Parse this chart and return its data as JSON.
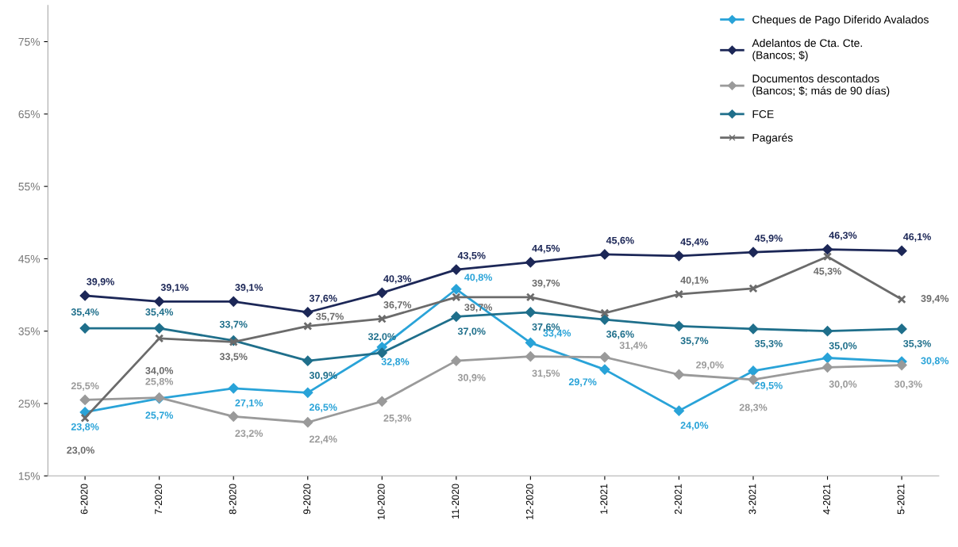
{
  "chart_data": {
    "type": "line",
    "categories": [
      "6-2020",
      "7-2020",
      "8-2020",
      "9-2020",
      "10-2020",
      "11-2020",
      "12-2020",
      "1-2021",
      "2-2021",
      "3-2021",
      "4-2021",
      "5-2021"
    ],
    "series": [
      {
        "name": "Cheques de Pago Diferido Avalados",
        "color": "#29a3d8",
        "marker": "diamond",
        "values": [
          23.8,
          25.7,
          27.1,
          26.5,
          32.8,
          40.8,
          33.4,
          29.7,
          24.0,
          29.5,
          31.3,
          30.8
        ],
        "value_labels": [
          "23,8%",
          "25,7%",
          "27,1%",
          "26,5%",
          "32,8%",
          "40,8%",
          "33,4%",
          "29,7%",
          "24,0%",
          "29,5%",
          null,
          "30,8%"
        ]
      },
      {
        "name": "Adelantos de Cta. Cte.\n(Bancos; $)",
        "color": "#1c2757",
        "marker": "diamond",
        "values": [
          39.9,
          39.1,
          39.1,
          37.6,
          40.3,
          43.5,
          44.5,
          45.6,
          45.4,
          45.9,
          46.3,
          46.1
        ],
        "value_labels": [
          "39,9%",
          "39,1%",
          "39,1%",
          "37,6%",
          "40,3%",
          "43,5%",
          "44,5%",
          "45,6%",
          "45,4%",
          "45,9%",
          "46,3%",
          "46,1%"
        ]
      },
      {
        "name": "Documentos descontados\n(Bancos; $; más de 90 días)",
        "color": "#9a9a9a",
        "marker": "diamond",
        "values": [
          25.5,
          25.8,
          23.2,
          22.4,
          25.3,
          30.9,
          31.5,
          31.4,
          29.0,
          28.3,
          30.0,
          30.3
        ],
        "value_labels": [
          "25,5%",
          "25,8%",
          "23,2%",
          "22,4%",
          "25,3%",
          "30,9%",
          "31,5%",
          "31,4%",
          "29,0%",
          "28,3%",
          "30,0%",
          "30,3%"
        ]
      },
      {
        "name": "FCE",
        "color": "#1f6f8b",
        "marker": "diamond",
        "values": [
          35.4,
          35.4,
          33.7,
          30.9,
          32.0,
          37.0,
          37.6,
          36.6,
          35.7,
          35.3,
          35.0,
          35.3
        ],
        "value_labels": [
          "35,4%",
          "35,4%",
          "33,7%",
          "30,9%",
          "32,0%",
          "37,0%",
          "37,6%",
          "36,6%",
          "35,7%",
          "35,3%",
          "35,0%",
          "35,3%"
        ]
      },
      {
        "name": "Pagarés",
        "color": "#6b6b6b",
        "marker": "cross",
        "values": [
          23.0,
          34.0,
          33.5,
          35.7,
          36.7,
          39.7,
          39.7,
          37.5,
          40.1,
          40.9,
          45.3,
          39.4
        ],
        "value_labels": [
          "23,0%",
          "34,0%",
          "33,5%",
          "35,7%",
          "36,7%",
          "39,7%",
          "39,7%",
          null,
          "40,1%",
          null,
          "45,3%",
          "39,4%"
        ]
      }
    ],
    "ylim": [
      15,
      80
    ],
    "yticks": [
      {
        "value": 15,
        "label": "15%"
      },
      {
        "value": 25,
        "label": "25%"
      },
      {
        "value": 35,
        "label": "35%"
      },
      {
        "value": 45,
        "label": "45%"
      },
      {
        "value": 55,
        "label": "55%"
      },
      {
        "value": 65,
        "label": "65%"
      },
      {
        "value": 75,
        "label": "75%"
      }
    ],
    "grid": false,
    "legend": "top right",
    "line_style": "solid"
  }
}
